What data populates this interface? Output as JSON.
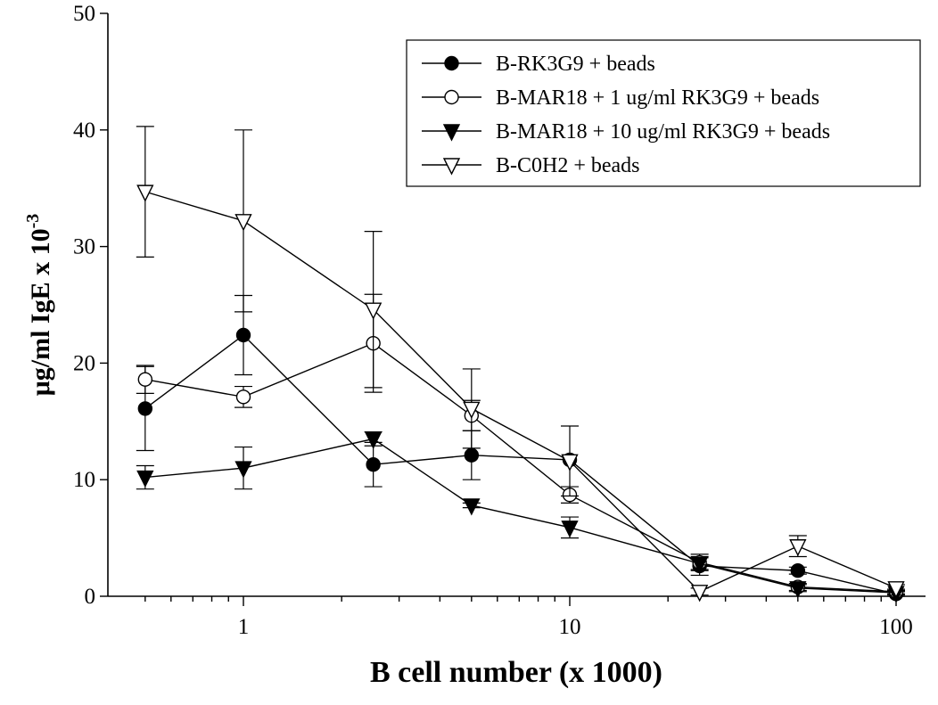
{
  "chart_data": {
    "type": "scatter",
    "title": "",
    "xlabel": "B cell number (x 1000)",
    "ylabel_main": "μg/ml IgE x 10",
    "ylabel_exp": "-3",
    "x_scale": "log",
    "xlim": [
      0.42,
      110
    ],
    "ylim": [
      0,
      50
    ],
    "x_ticks": [
      1,
      10,
      100
    ],
    "x_tick_labels": [
      "1",
      "10",
      "100"
    ],
    "y_ticks": [
      0,
      10,
      20,
      30,
      40,
      50
    ],
    "y_tick_labels": [
      "0",
      "10",
      "20",
      "30",
      "40",
      "50"
    ],
    "legend_position": "top-right",
    "grid": false,
    "series": [
      {
        "name": "B-RK3G9 + beads",
        "marker": "circle-filled",
        "x": [
          0.5,
          1,
          2.5,
          5,
          10,
          25,
          50,
          100
        ],
        "y": [
          16.1,
          22.4,
          11.3,
          12.1,
          11.7,
          2.6,
          2.2,
          0.2
        ],
        "err": [
          3.6,
          3.4,
          1.9,
          2.1,
          0,
          0.8,
          0.3,
          0.2
        ]
      },
      {
        "name": "B-MAR18 + 1 ug/ml RK3G9 + beads",
        "marker": "circle-open",
        "x": [
          0.5,
          1,
          2.5,
          5,
          10,
          25,
          50,
          100
        ],
        "y": [
          18.6,
          17.1,
          21.7,
          15.5,
          8.7,
          2.9,
          0.8,
          0.4
        ],
        "err": [
          1.2,
          0.9,
          4.2,
          1.3,
          0.7,
          0.7,
          0.3,
          0.2
        ]
      },
      {
        "name": "B-MAR18 + 10 ug/ml RK3G9 + beads",
        "marker": "triangle-down-filled",
        "x": [
          0.5,
          1,
          2.5,
          5,
          10,
          25,
          50,
          100
        ],
        "y": [
          10.2,
          11.0,
          13.5,
          7.8,
          5.9,
          2.8,
          0.7,
          0.3
        ],
        "err": [
          1.0,
          1.8,
          0.6,
          0.2,
          0.9,
          0.5,
          0.3,
          0.2
        ]
      },
      {
        "name": "B-C0H2 + beads",
        "marker": "triangle-down-open",
        "x": [
          0.5,
          1,
          2.5,
          5,
          10,
          25,
          50,
          100
        ],
        "y": [
          34.7,
          32.2,
          24.6,
          16.1,
          11.6,
          0.4,
          4.3,
          0.7
        ],
        "err": [
          5.6,
          7.8,
          6.7,
          3.4,
          3.0,
          0.3,
          0.9,
          0.3
        ]
      }
    ]
  }
}
